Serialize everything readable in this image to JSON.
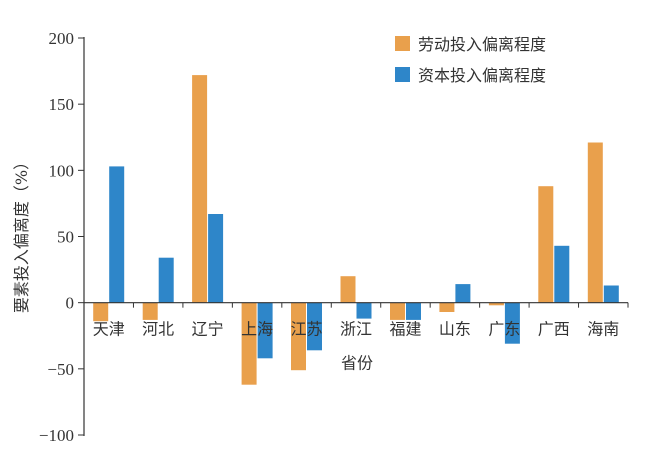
{
  "colors": {
    "labor": "#E9A04C",
    "capital": "#2E86C9",
    "axis": "#333333"
  },
  "chart_data": {
    "type": "bar",
    "ylabel": "要素投入偏离度（%）",
    "xlabel": "省份",
    "ylim": [
      -100,
      200
    ],
    "yticks": [
      -100,
      -50,
      0,
      50,
      100,
      150,
      200
    ],
    "ytick_labels": [
      "−100",
      "−50",
      "0",
      "50",
      "100",
      "150",
      "200"
    ],
    "categories": [
      "天津",
      "河北",
      "辽宁",
      "上海",
      "江苏",
      "浙江",
      "福建",
      "山东",
      "广东",
      "广西",
      "海南"
    ],
    "legend_position": "top-right",
    "grid": false,
    "series": [
      {
        "name": "劳动投入偏离程度",
        "color_key": "labor",
        "values": [
          -14,
          -13,
          172,
          -62,
          -51,
          20,
          -13,
          -7,
          -2,
          88,
          121
        ]
      },
      {
        "name": "资本投入偏离程度",
        "color_key": "capital",
        "values": [
          103,
          34,
          67,
          -42,
          -36,
          -12,
          -13,
          14,
          -31,
          43,
          13
        ]
      }
    ]
  }
}
